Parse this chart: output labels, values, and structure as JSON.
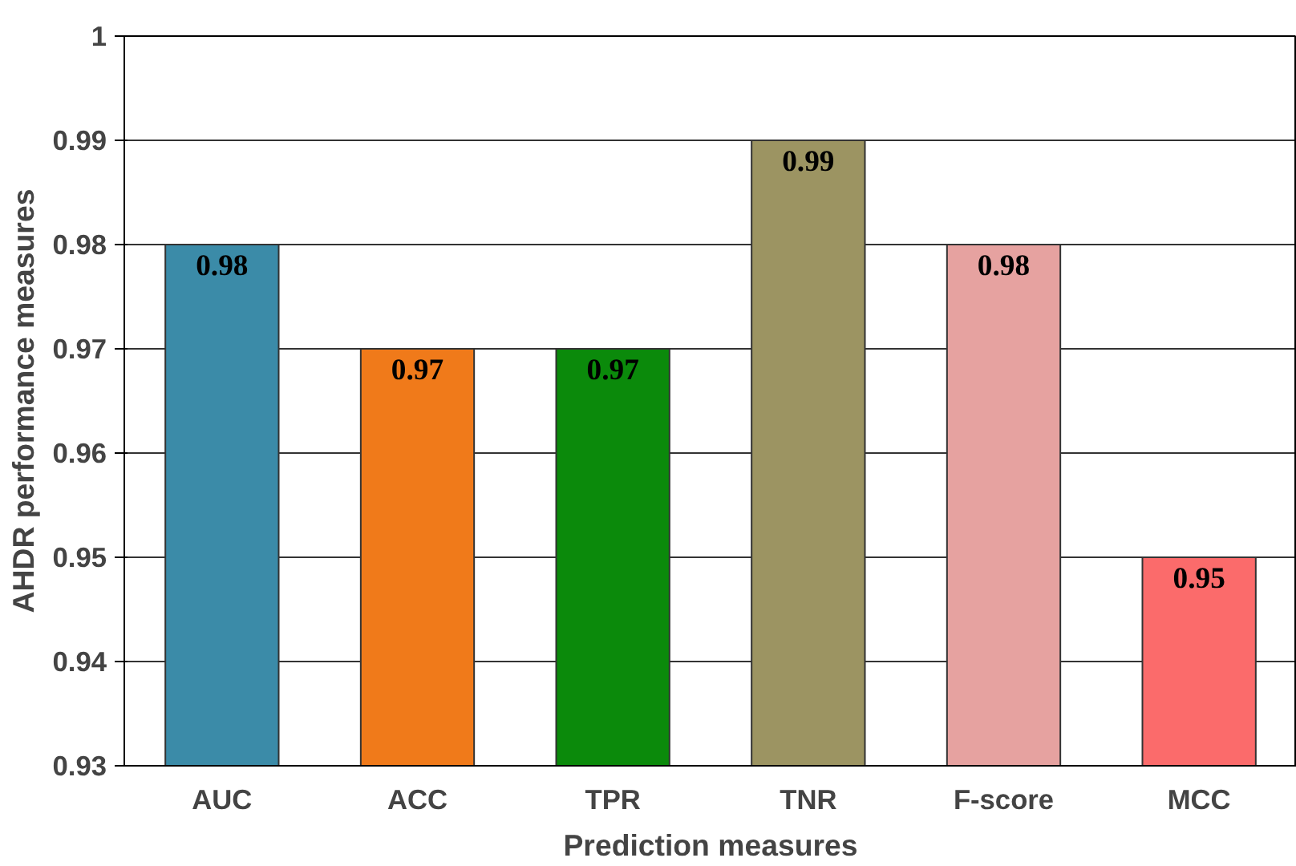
{
  "chart_data": {
    "type": "bar",
    "xlabel": "Prediction measures",
    "ylabel": "AHDR performance measures",
    "categories": [
      "AUC",
      "ACC",
      "TPR",
      "TNR",
      "F-score",
      "MCC"
    ],
    "values": [
      0.98,
      0.97,
      0.97,
      0.99,
      0.98,
      0.95
    ],
    "colors": [
      "#3b8ba8",
      "#f07a1a",
      "#0b8a0b",
      "#9c9462",
      "#e6a2a0",
      "#fb6b6b"
    ],
    "ylim": [
      0.93,
      1
    ],
    "yticks": [
      0.93,
      0.94,
      0.95,
      0.96,
      0.97,
      0.98,
      0.99,
      1
    ],
    "grid": "y",
    "data_labels": true
  }
}
